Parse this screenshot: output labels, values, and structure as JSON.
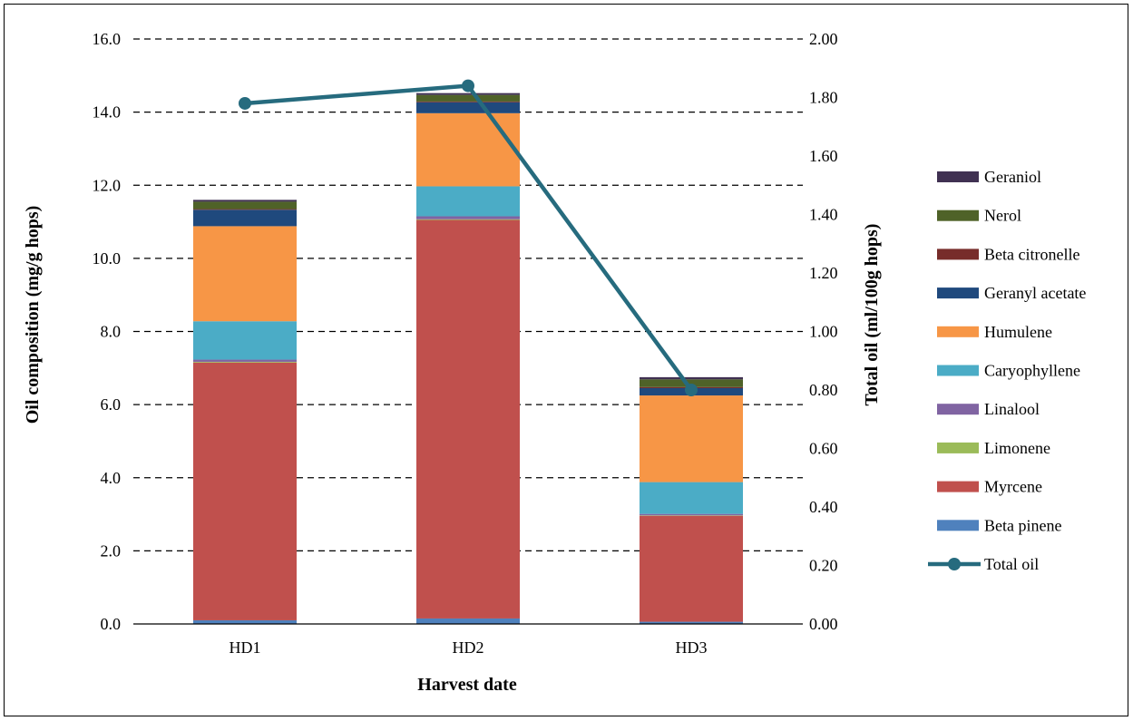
{
  "chart_data": {
    "type": "bar",
    "stacked": true,
    "categories": [
      "HD1",
      "HD2",
      "HD3"
    ],
    "xlabel": "Harvest date",
    "ylabel": "Oil composition (mg/g hops)",
    "y2label": "Total oil (ml/100g hops)",
    "ylim": [
      0,
      16
    ],
    "y2lim": [
      0,
      2
    ],
    "yticks": [
      "0.0",
      "2.0",
      "4.0",
      "6.0",
      "8.0",
      "10.0",
      "12.0",
      "14.0",
      "16.0"
    ],
    "y2ticks": [
      "0.00",
      "0.20",
      "0.40",
      "0.60",
      "0.80",
      "1.00",
      "1.20",
      "1.40",
      "1.60",
      "1.80",
      "2.00"
    ],
    "grid": "dashed horizontal",
    "legend_position": "right",
    "series": [
      {
        "name": "Beta pinene",
        "color": "#4f81bd",
        "values": [
          0.1,
          0.15,
          0.06
        ]
      },
      {
        "name": "Myrcene",
        "color": "#c0504d",
        "values": [
          7.05,
          10.9,
          2.9
        ]
      },
      {
        "name": "Limonene",
        "color": "#9bbb59",
        "values": [
          0.02,
          0.02,
          0.01
        ]
      },
      {
        "name": "Linalool",
        "color": "#8064a2",
        "values": [
          0.06,
          0.08,
          0.04
        ]
      },
      {
        "name": "Caryophyllene",
        "color": "#4bacc6",
        "values": [
          1.05,
          0.82,
          0.87
        ]
      },
      {
        "name": "Humulene",
        "color": "#f79646",
        "values": [
          2.6,
          2.0,
          2.37
        ]
      },
      {
        "name": "Geranyl acetate",
        "color": "#1f497d",
        "values": [
          0.45,
          0.3,
          0.2
        ]
      },
      {
        "name": "Beta citronelle",
        "color": "#772c2a",
        "values": [
          0.02,
          0.02,
          0.03
        ]
      },
      {
        "name": "Nerol",
        "color": "#4f6228",
        "values": [
          0.2,
          0.18,
          0.21
        ]
      },
      {
        "name": "Geraniol",
        "color": "#403152",
        "values": [
          0.05,
          0.05,
          0.06
        ]
      }
    ],
    "line_series": {
      "name": "Total oil",
      "color": "#266b7e",
      "axis": "right",
      "values": [
        1.78,
        1.84,
        0.8
      ]
    }
  }
}
